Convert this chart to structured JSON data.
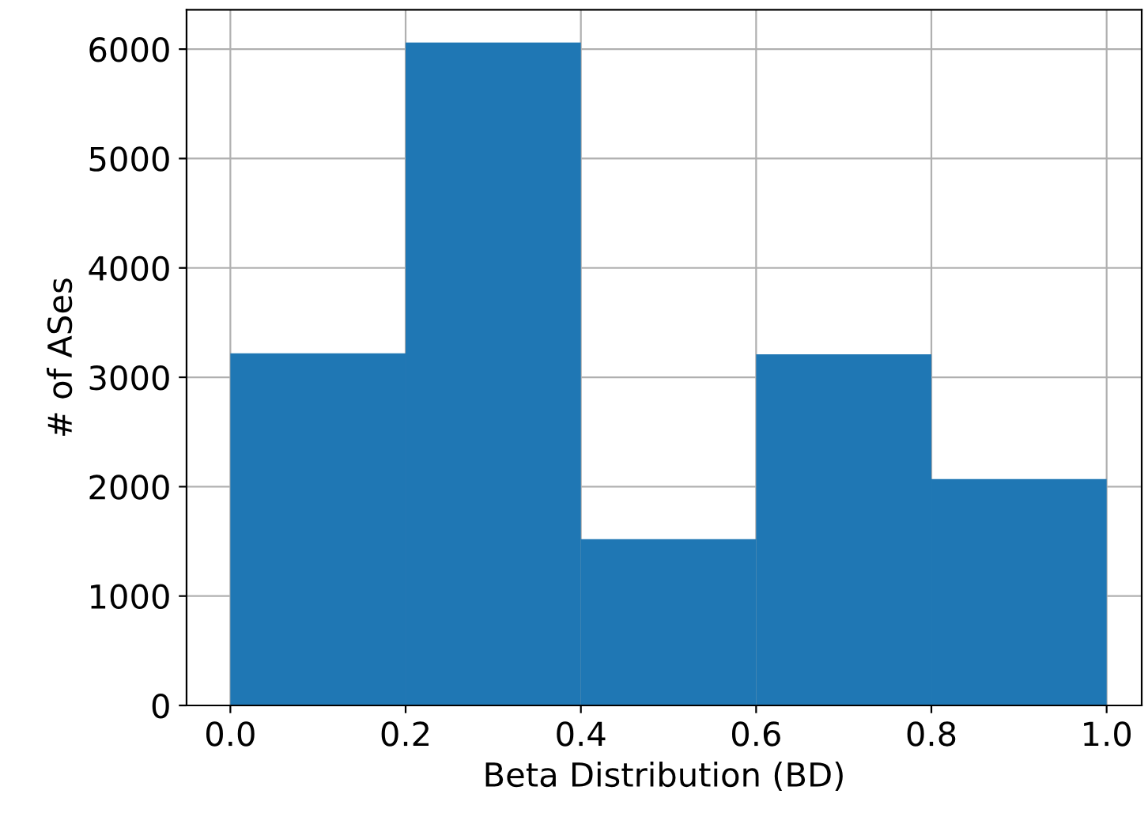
{
  "chart_data": {
    "type": "histogram",
    "xlabel": "Beta Distribution (BD)",
    "ylabel": "# of ASes",
    "bins": [
      0.0,
      0.2,
      0.4,
      0.6,
      0.8,
      1.0
    ],
    "values": [
      3220,
      6060,
      1520,
      3210,
      2070
    ],
    "color": "#1f77b4",
    "xlim": [
      -0.05,
      1.04
    ],
    "xticks": [
      {
        "value": 0.0,
        "label": "0.0"
      },
      0.2,
      0.4,
      0.6,
      0.8,
      {
        "value": 1.0,
        "label": "1.0"
      }
    ],
    "ylim": [
      0,
      6360
    ],
    "yticks": [
      0,
      1000,
      2000,
      3000,
      4000,
      5000,
      6000
    ],
    "grid": true
  }
}
